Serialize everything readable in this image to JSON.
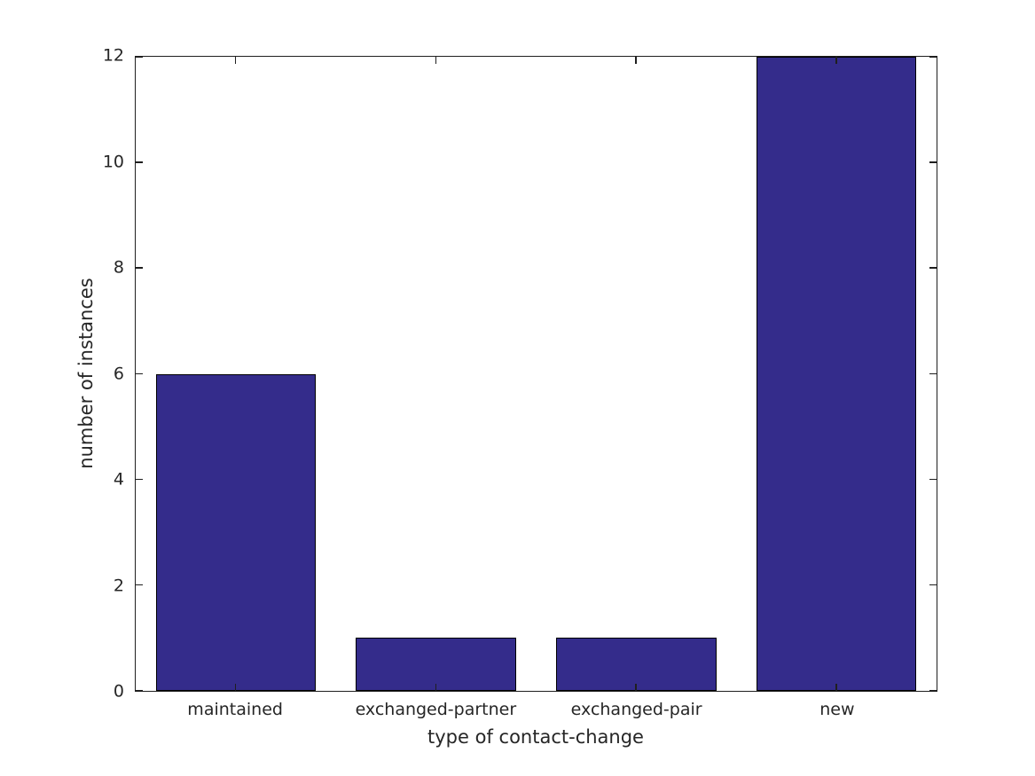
{
  "figure": {
    "background_color": "#ffffff",
    "axes_color": "#1f1f1f",
    "text_color": "#262626"
  },
  "chart_data": {
    "type": "bar",
    "title": "",
    "categories": [
      "maintained",
      "exchanged-partner",
      "exchanged-pair",
      "new"
    ],
    "values": [
      6,
      1,
      1,
      12
    ],
    "xlabel": "type of contact-change",
    "ylabel": "number of instances",
    "ylim": [
      0,
      12
    ],
    "yticks": [
      0,
      2,
      4,
      6,
      8,
      10,
      12
    ],
    "bar_color": "#342C8B",
    "bar_edge_color": "#000000",
    "bar_width_fraction": 0.8,
    "grid": false,
    "box": true,
    "tick_direction": "in",
    "legend": null
  }
}
